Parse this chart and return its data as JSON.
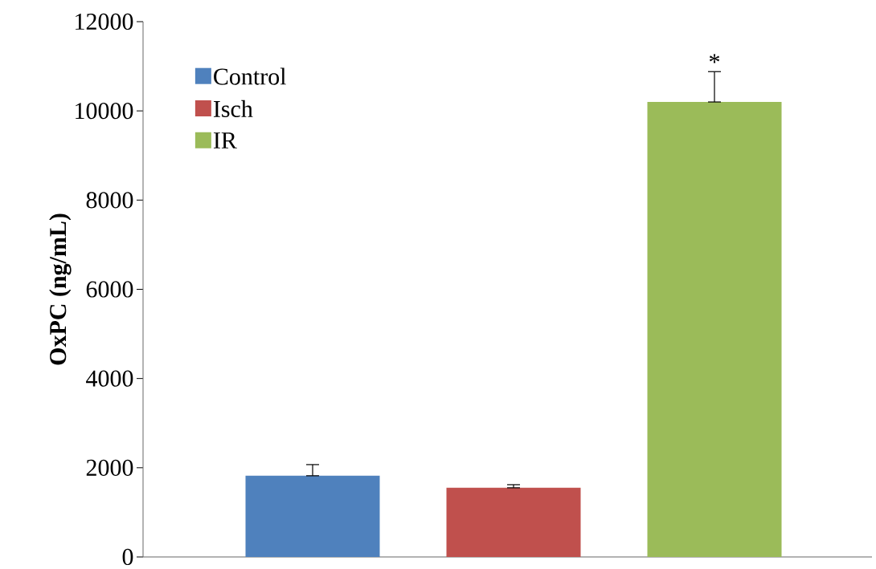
{
  "chart_data": {
    "type": "bar",
    "ylabel": "OxPC (ng/mL)",
    "categories": [
      null,
      null,
      null
    ],
    "series": [
      {
        "name": "Control",
        "color": "#4f81bd",
        "values": [
          1820,
          null,
          null
        ],
        "errors": [
          [
            1820,
            2070
          ],
          null,
          null
        ]
      },
      {
        "name": "Isch",
        "color": "#c0504d",
        "values": [
          null,
          1550,
          null
        ],
        "errors": [
          null,
          [
            1550,
            1620
          ],
          null
        ]
      },
      {
        "name": "IR",
        "color": "#9bbb59",
        "values": [
          null,
          null,
          10200
        ],
        "errors": [
          null,
          null,
          [
            10200,
            10880
          ]
        ]
      }
    ],
    "ylim": [
      0,
      12000
    ],
    "yticks": [
      0,
      2000,
      4000,
      6000,
      8000,
      10000,
      12000
    ],
    "annotations": [
      {
        "text": "*",
        "y": 10880
      }
    ],
    "legend": "top left",
    "grid": false,
    "tick_labels": "y"
  }
}
